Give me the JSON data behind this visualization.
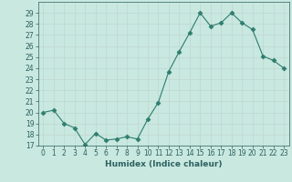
{
  "title": "",
  "xlabel": "Humidex (Indice chaleur)",
  "ylabel": "",
  "x": [
    0,
    1,
    2,
    3,
    4,
    5,
    6,
    7,
    8,
    9,
    10,
    11,
    12,
    13,
    14,
    15,
    16,
    17,
    18,
    19,
    20,
    21,
    22,
    23
  ],
  "y": [
    20,
    20.2,
    19,
    18.6,
    17.1,
    18.1,
    17.5,
    17.6,
    17.8,
    17.6,
    19.4,
    20.9,
    23.7,
    25.5,
    27.2,
    29.0,
    27.8,
    28.1,
    29.0,
    28.1,
    27.5,
    25.1,
    24.7,
    24.0
  ],
  "line_color": "#2e7d6e",
  "marker": "D",
  "marker_size": 2.5,
  "bg_color": "#c8e8e0",
  "grid_color": "#c0d8d0",
  "tick_color": "#2e6060",
  "label_color": "#2e6060",
  "ylim": [
    17,
    30
  ],
  "xlim": [
    -0.5,
    23.5
  ],
  "yticks": [
    17,
    18,
    19,
    20,
    21,
    22,
    23,
    24,
    25,
    26,
    27,
    28,
    29
  ],
  "xticks": [
    0,
    1,
    2,
    3,
    4,
    5,
    6,
    7,
    8,
    9,
    10,
    11,
    12,
    13,
    14,
    15,
    16,
    17,
    18,
    19,
    20,
    21,
    22,
    23
  ],
  "axis_fontsize": 5.5,
  "label_fontsize": 6.5
}
